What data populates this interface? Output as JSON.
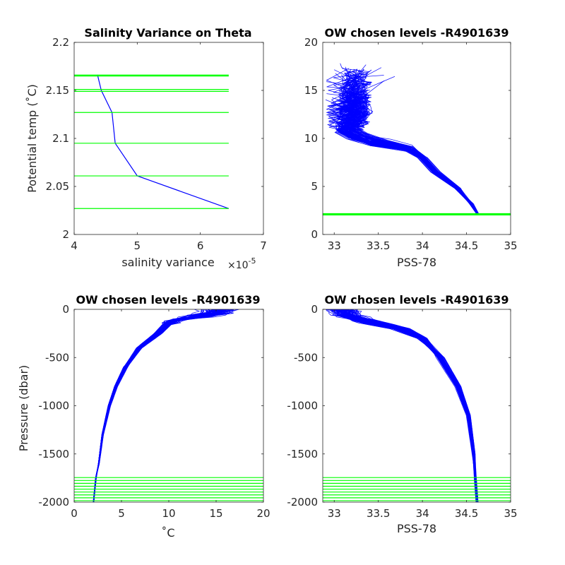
{
  "chart_data": [
    {
      "id": "tl",
      "type": "line",
      "title": "Salinity Variance on Theta",
      "xlabel": "salinity variance",
      "xlabel_multiplier": "×10",
      "xlabel_exponent": "-5",
      "ylabel": "Potential temp (˚C)",
      "xlim": [
        4,
        7
      ],
      "ylim": [
        2,
        2.2
      ],
      "xticks": [
        4,
        5,
        6,
        7
      ],
      "yticks": [
        2,
        2.05,
        2.1,
        2.15,
        2.2
      ],
      "xtick_labels": [
        "4",
        "5",
        "6",
        "7"
      ],
      "ytick_labels": [
        "2",
        "2.05",
        "2.1",
        "2.15",
        "2.2"
      ],
      "series": [
        {
          "color": "#0000ff",
          "x": [
            4.37,
            4.43,
            4.6,
            4.65,
            5.0,
            6.45
          ],
          "y": [
            2.166,
            2.15,
            2.127,
            2.095,
            2.061,
            2.027
          ]
        }
      ],
      "hlines": {
        "color": "#00ff00",
        "x_range": [
          4.0,
          6.45
        ],
        "y": [
          2.166,
          2.165,
          2.151,
          2.149,
          2.127,
          2.095,
          2.061,
          2.027
        ]
      }
    },
    {
      "id": "tr",
      "type": "line",
      "title": "OW chosen levels -R4901639",
      "xlabel": "PSS-78",
      "ylabel": "",
      "xlim": [
        32.87,
        35
      ],
      "ylim": [
        0,
        20
      ],
      "xticks": [
        33,
        33.5,
        34,
        34.5,
        35
      ],
      "yticks": [
        0,
        5,
        10,
        15,
        20
      ],
      "xtick_labels": [
        "33",
        "33.5",
        "34",
        "34.5",
        "35"
      ],
      "ytick_labels": [
        "0",
        "5",
        "10",
        "15",
        "20"
      ],
      "profile_count": 90,
      "profile_style": "theta-salinity",
      "series_color": "#0000ff",
      "hlines": {
        "color": "#00ff00",
        "y": [
          2.03,
          2.06,
          2.1,
          2.13,
          2.15,
          2.17
        ]
      }
    },
    {
      "id": "bl",
      "type": "line",
      "title": "OW chosen levels -R4901639",
      "xlabel": "˚C",
      "ylabel": "Pressure (dbar)",
      "xlim": [
        0,
        20
      ],
      "ylim": [
        -2000,
        0
      ],
      "xticks": [
        0,
        5,
        10,
        15,
        20
      ],
      "yticks": [
        -2000,
        -1500,
        -1000,
        -500,
        0
      ],
      "xtick_labels": [
        "0",
        "5",
        "10",
        "15",
        "20"
      ],
      "ytick_labels": [
        "-2000",
        "-1500",
        "-1000",
        "-500",
        "0"
      ],
      "profile_count": 90,
      "profile_style": "temperature-pressure",
      "series_color": "#0000ff",
      "hlines": {
        "color": "#00ff00",
        "y": [
          -1745,
          -1775,
          -1805,
          -1835,
          -1865,
          -1895,
          -1925,
          -1955,
          -1985
        ]
      }
    },
    {
      "id": "br",
      "type": "line",
      "title": "OW chosen levels -R4901639",
      "xlabel": "PSS-78",
      "ylabel": "",
      "xlim": [
        32.87,
        35
      ],
      "ylim": [
        -2000,
        0
      ],
      "xticks": [
        33,
        33.5,
        34,
        34.5,
        35
      ],
      "yticks": [
        -2000,
        -1500,
        -1000,
        -500,
        0
      ],
      "xtick_labels": [
        "33",
        "33.5",
        "34",
        "34.5",
        "35"
      ],
      "ytick_labels": [
        "-2000",
        "-1500",
        "-1000",
        "-500",
        "0"
      ],
      "profile_count": 90,
      "profile_style": "salinity-pressure",
      "series_color": "#0000ff",
      "hlines": {
        "color": "#00ff00",
        "y": [
          -1745,
          -1775,
          -1805,
          -1835,
          -1865,
          -1895,
          -1925,
          -1955,
          -1985
        ]
      }
    }
  ]
}
